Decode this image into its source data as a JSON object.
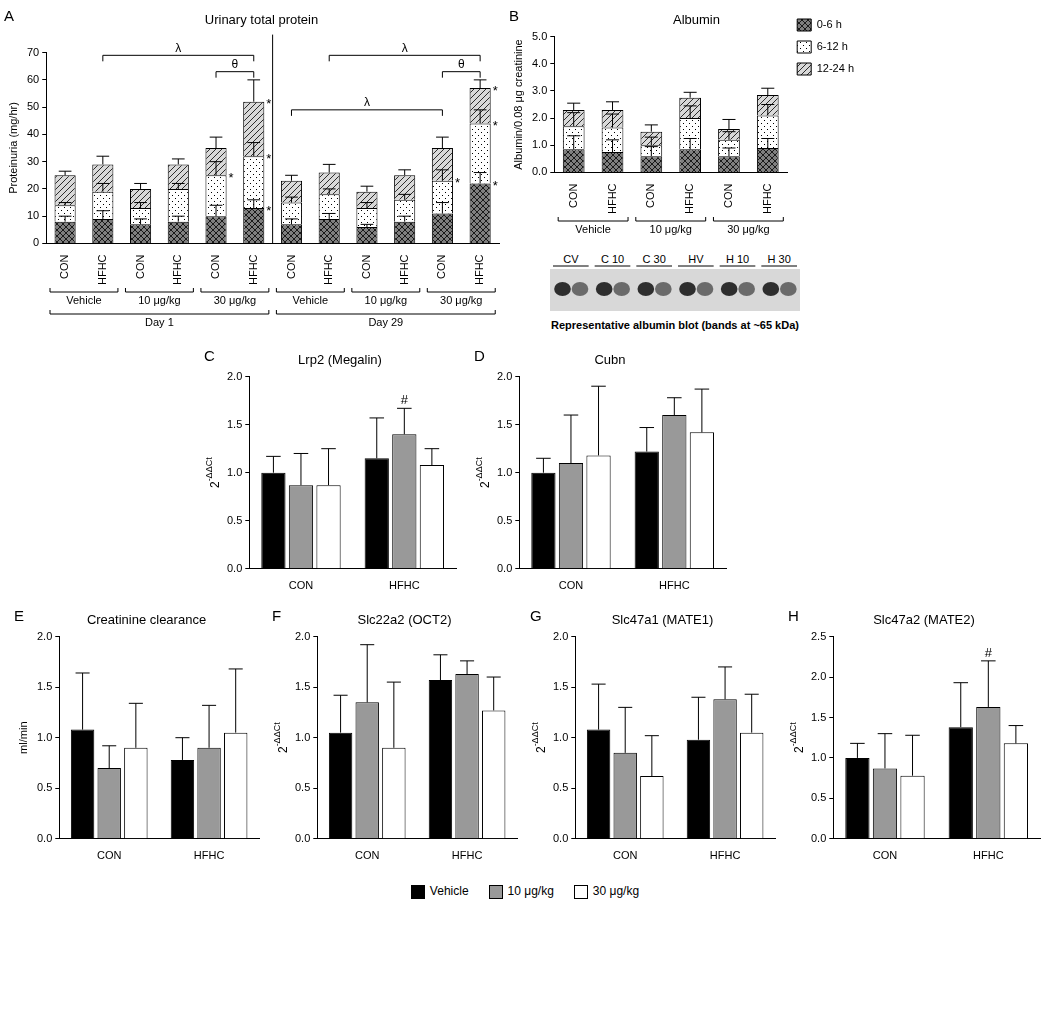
{
  "chart_data": [
    {
      "panel": "A",
      "type": "bar",
      "title": "Urinary total protein",
      "ylabel": "Proteinuria (mg/hr)",
      "stacked": true,
      "grid": false,
      "categories": [
        "CON",
        "HFHC",
        "CON",
        "HFHC",
        "CON",
        "HFHC",
        "CON",
        "HFHC",
        "CON",
        "HFHC",
        "CON",
        "HFHC"
      ],
      "x_groups": [
        "Vehicle",
        "10 μg/kg",
        "30 μg/kg",
        "Vehicle",
        "10 μg/kg",
        "30 μg/kg"
      ],
      "x_supergroups": [
        "Day 1",
        "Day 29"
      ],
      "ylim": [
        0,
        70
      ],
      "yticks": [
        0,
        10,
        20,
        30,
        40,
        50,
        60,
        70
      ],
      "series": [
        {
          "name": "0-6 h",
          "color": "#7f7f7f",
          "values": [
            8,
            9,
            7,
            8,
            10,
            13,
            7,
            9,
            6,
            8,
            11,
            22
          ],
          "errors": [
            2,
            3,
            2,
            2,
            4,
            3,
            2,
            2,
            1,
            2,
            4,
            4
          ],
          "significance": [
            null,
            null,
            null,
            null,
            null,
            "*",
            null,
            null,
            null,
            null,
            null,
            "*"
          ]
        },
        {
          "name": "6-12 h",
          "color": "#ffffff",
          "values": [
            6,
            10,
            6,
            12,
            15,
            19,
            8,
            9,
            7,
            8,
            12,
            22
          ],
          "errors": [
            1,
            3,
            2,
            2,
            5,
            5,
            2,
            2,
            2,
            2,
            4,
            5
          ],
          "significance": [
            null,
            null,
            null,
            null,
            "*",
            "*",
            null,
            null,
            null,
            null,
            "*",
            "*"
          ]
        },
        {
          "name": "12-24 h",
          "color": "#d9d9d9",
          "values": [
            11,
            10,
            7,
            9,
            10,
            20,
            8,
            8,
            6,
            9,
            12,
            13
          ],
          "errors": [
            1.5,
            3,
            2,
            2,
            4,
            8,
            2,
            3,
            2,
            2,
            4,
            3
          ],
          "significance": [
            null,
            null,
            null,
            null,
            null,
            "*",
            null,
            null,
            null,
            null,
            null,
            "*"
          ]
        }
      ],
      "brackets": [
        {
          "text": "λ",
          "from": 1,
          "to": 5,
          "y": 69
        },
        {
          "text": "θ",
          "from": 4,
          "to": 5,
          "y": 63
        },
        {
          "text": "λ",
          "from": 7,
          "to": 11,
          "y": 69
        },
        {
          "text": "λ",
          "from": 6,
          "to": 10,
          "y": 49
        },
        {
          "text": "θ",
          "from": 10,
          "to": 11,
          "y": 63
        }
      ]
    },
    {
      "panel": "B",
      "type": "bar",
      "title": "Albumin",
      "ylabel": "Albumin/0.08 μg creatinine",
      "stacked": true,
      "grid": false,
      "legend": "right",
      "categories": [
        "CON",
        "HFHC",
        "CON",
        "HFHC",
        "CON",
        "HFHC"
      ],
      "x_groups": [
        "Vehicle",
        "10 μg/kg",
        "30 μg/kg"
      ],
      "ylim": [
        0,
        5
      ],
      "yticks": [
        {
          "value": 0,
          "label": "0.0"
        },
        {
          "value": 1,
          "label": "1.0"
        },
        {
          "value": 2,
          "label": "2.0"
        },
        {
          "value": 3,
          "label": "3.0"
        },
        {
          "value": 4,
          "label": "4.0"
        },
        {
          "value": 5,
          "label": "5.0"
        }
      ],
      "series": [
        {
          "name": "0-6 h",
          "color": "#7f7f7f",
          "values": [
            0.85,
            0.75,
            0.6,
            0.85,
            0.6,
            0.9
          ],
          "errors": [
            0.5,
            0.45,
            0.35,
            0.4,
            0.3,
            0.35
          ]
        },
        {
          "name": "6-12 h",
          "color": "#ffffff",
          "values": [
            0.85,
            0.9,
            0.4,
            1.15,
            0.6,
            1.2
          ],
          "errors": [
            0.5,
            0.5,
            0.3,
            0.45,
            0.3,
            0.4
          ]
        },
        {
          "name": "12-24 h",
          "color": "#d9d9d9",
          "values": [
            0.6,
            0.65,
            0.5,
            0.75,
            0.4,
            0.75
          ],
          "errors": [
            0.25,
            0.3,
            0.25,
            0.2,
            0.35,
            0.25
          ]
        }
      ],
      "blot": {
        "lanes": [
          "CV",
          "C 10",
          "C 30",
          "HV",
          "H 10",
          "H 30"
        ],
        "caption": "Representative albumin blot (bands at ~65 kDa)"
      }
    },
    {
      "panel": "C",
      "type": "bar",
      "title": "Lrp2 (Megalin)",
      "ylabel": {
        "text": "2",
        "superscript": "-ΔΔCt"
      },
      "grid": false,
      "legend": "bottom",
      "categories": [
        "CON",
        "HFHC"
      ],
      "ylim": [
        0,
        2
      ],
      "yticks": [
        {
          "value": 0,
          "label": "0.0"
        },
        {
          "value": 0.5,
          "label": "0.5"
        },
        {
          "value": 1,
          "label": "1.0"
        },
        {
          "value": 1.5,
          "label": "1.5"
        },
        {
          "value": 2,
          "label": "2.0"
        }
      ],
      "series": [
        {
          "name": "Vehicle",
          "color": "#000000",
          "values": [
            1.0,
            1.15
          ],
          "errors": [
            0.17,
            0.42
          ]
        },
        {
          "name": "10 μg/kg",
          "color": "#999999",
          "values": [
            0.87,
            1.4
          ],
          "errors": [
            0.33,
            0.27
          ],
          "significance": [
            null,
            "#"
          ]
        },
        {
          "name": "30 μg/kg",
          "color": "#ffffff",
          "values": [
            0.87,
            1.08
          ],
          "errors": [
            0.38,
            0.17
          ]
        }
      ]
    },
    {
      "panel": "D",
      "type": "bar",
      "title": "Cubn",
      "ylabel": {
        "text": "2",
        "superscript": "-ΔΔCt"
      },
      "grid": false,
      "legend": "bottom",
      "categories": [
        "CON",
        "HFHC"
      ],
      "ylim": [
        0,
        2
      ],
      "yticks": [
        {
          "value": 0,
          "label": "0.0"
        },
        {
          "value": 0.5,
          "label": "0.5"
        },
        {
          "value": 1,
          "label": "1.0"
        },
        {
          "value": 1.5,
          "label": "1.5"
        },
        {
          "value": 2,
          "label": "2.0"
        }
      ],
      "series": [
        {
          "name": "Vehicle",
          "color": "#000000",
          "values": [
            1.0,
            1.22
          ],
          "errors": [
            0.15,
            0.25
          ]
        },
        {
          "name": "10 μg/kg",
          "color": "#999999",
          "values": [
            1.1,
            1.6
          ],
          "errors": [
            0.5,
            0.18
          ]
        },
        {
          "name": "30 μg/kg",
          "color": "#ffffff",
          "values": [
            1.18,
            1.42
          ],
          "errors": [
            0.72,
            0.45
          ]
        }
      ]
    },
    {
      "panel": "E",
      "type": "bar",
      "title": "Creatinine clearance",
      "ylabel": "ml/min",
      "grid": false,
      "legend": "bottom",
      "categories": [
        "CON",
        "HFHC"
      ],
      "ylim": [
        0,
        2
      ],
      "yticks": [
        {
          "value": 0,
          "label": "0.0"
        },
        {
          "value": 0.5,
          "label": "0.5"
        },
        {
          "value": 1,
          "label": "1.0"
        },
        {
          "value": 1.5,
          "label": "1.5"
        },
        {
          "value": 2,
          "label": "2.0"
        }
      ],
      "series": [
        {
          "name": "Vehicle",
          "color": "#000000",
          "values": [
            1.08,
            0.78
          ],
          "errors": [
            0.56,
            0.22
          ]
        },
        {
          "name": "10 μg/kg",
          "color": "#999999",
          "values": [
            0.7,
            0.9
          ],
          "errors": [
            0.22,
            0.42
          ]
        },
        {
          "name": "30 μg/kg",
          "color": "#ffffff",
          "values": [
            0.9,
            1.05
          ],
          "errors": [
            0.44,
            0.63
          ]
        }
      ]
    },
    {
      "panel": "F",
      "type": "bar",
      "title": "Slc22a2 (OCT2)",
      "ylabel": {
        "text": "2",
        "superscript": "-ΔΔCt"
      },
      "grid": false,
      "legend": "bottom",
      "categories": [
        "CON",
        "HFHC"
      ],
      "ylim": [
        0,
        2
      ],
      "yticks": [
        {
          "value": 0,
          "label": "0.0"
        },
        {
          "value": 0.5,
          "label": "0.5"
        },
        {
          "value": 1,
          "label": "1.0"
        },
        {
          "value": 1.5,
          "label": "1.5"
        },
        {
          "value": 2,
          "label": "2.0"
        }
      ],
      "series": [
        {
          "name": "Vehicle",
          "color": "#000000",
          "values": [
            1.05,
            1.57
          ],
          "errors": [
            0.37,
            0.25
          ]
        },
        {
          "name": "10 μg/kg",
          "color": "#999999",
          "values": [
            1.35,
            1.63
          ],
          "errors": [
            0.57,
            0.13
          ]
        },
        {
          "name": "30 μg/kg",
          "color": "#ffffff",
          "values": [
            0.9,
            1.27
          ],
          "errors": [
            0.65,
            0.33
          ]
        }
      ]
    },
    {
      "panel": "G",
      "type": "bar",
      "title": "Slc47a1 (MATE1)",
      "ylabel": {
        "text": "2",
        "superscript": "-ΔΔCt"
      },
      "grid": false,
      "legend": "bottom",
      "categories": [
        "CON",
        "HFHC"
      ],
      "ylim": [
        0,
        2
      ],
      "yticks": [
        {
          "value": 0,
          "label": "0.0"
        },
        {
          "value": 0.5,
          "label": "0.5"
        },
        {
          "value": 1,
          "label": "1.0"
        },
        {
          "value": 1.5,
          "label": "1.5"
        },
        {
          "value": 2,
          "label": "2.0"
        }
      ],
      "series": [
        {
          "name": "Vehicle",
          "color": "#000000",
          "values": [
            1.08,
            0.98
          ],
          "errors": [
            0.45,
            0.42
          ]
        },
        {
          "name": "10 μg/kg",
          "color": "#999999",
          "values": [
            0.85,
            1.38
          ],
          "errors": [
            0.45,
            0.32
          ]
        },
        {
          "name": "30 μg/kg",
          "color": "#ffffff",
          "values": [
            0.62,
            1.05
          ],
          "errors": [
            0.4,
            0.38
          ]
        }
      ]
    },
    {
      "panel": "H",
      "type": "bar",
      "title": "Slc47a2 (MATE2)",
      "ylabel": {
        "text": "2",
        "superscript": "-ΔΔCt"
      },
      "grid": false,
      "legend": "bottom",
      "categories": [
        "CON",
        "HFHC"
      ],
      "ylim": [
        0,
        2.5
      ],
      "yticks": [
        {
          "value": 0,
          "label": "0.0"
        },
        {
          "value": 0.5,
          "label": "0.5"
        },
        {
          "value": 1,
          "label": "1.0"
        },
        {
          "value": 1.5,
          "label": "1.5"
        },
        {
          "value": 2,
          "label": "2.0"
        },
        {
          "value": 2.5,
          "label": "2.5"
        }
      ],
      "series": [
        {
          "name": "Vehicle",
          "color": "#000000",
          "values": [
            1.0,
            1.38
          ],
          "errors": [
            0.18,
            0.55
          ]
        },
        {
          "name": "10 μg/kg",
          "color": "#999999",
          "values": [
            0.87,
            1.63
          ],
          "errors": [
            0.43,
            0.57
          ],
          "significance": [
            null,
            "#"
          ]
        },
        {
          "name": "30 μg/kg",
          "color": "#ffffff",
          "values": [
            0.78,
            1.18
          ],
          "errors": [
            0.5,
            0.22
          ]
        }
      ]
    }
  ]
}
